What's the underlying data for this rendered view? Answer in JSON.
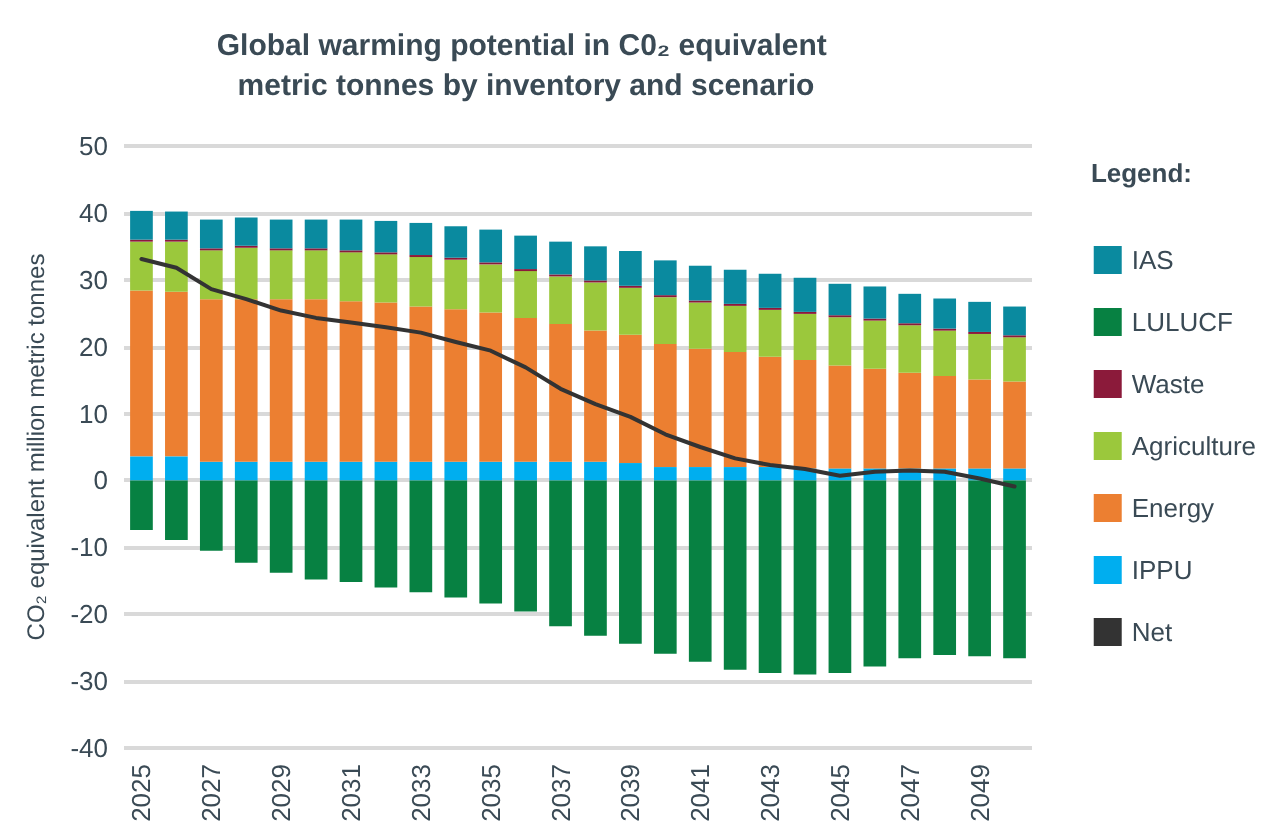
{
  "chart_data": {
    "type": "bar",
    "title": "Global warming potential in C0₂ equivalent metric tonnes by inventory and scenario",
    "ylabel": "CO₂ equivalent million metric tonnes",
    "legend_title": "Legend:",
    "categories": [
      "2025",
      null,
      "2027",
      null,
      "2029",
      null,
      "2031",
      null,
      "2033",
      null,
      "2035",
      null,
      "2037",
      null,
      "2039",
      null,
      "2041",
      null,
      "2043",
      null,
      "2045",
      null,
      "2047",
      null,
      "2049",
      null
    ],
    "stacked": true,
    "series": [
      {
        "name": "IPPU",
        "color": "#00aeef",
        "values": [
          3.6,
          3.6,
          2.8,
          2.8,
          2.8,
          2.8,
          2.8,
          2.8,
          2.8,
          2.8,
          2.8,
          2.8,
          2.8,
          2.8,
          2.6,
          2.0,
          2.0,
          2.0,
          2.0,
          1.8,
          1.8,
          1.8,
          1.8,
          1.8,
          1.8,
          1.8
        ]
      },
      {
        "name": "Energy",
        "color": "#ec7f31",
        "values": [
          24.8,
          24.6,
          24.3,
          24.3,
          24.3,
          24.3,
          24.0,
          23.8,
          23.2,
          22.8,
          22.3,
          21.5,
          20.6,
          19.6,
          19.2,
          18.4,
          17.7,
          17.2,
          16.5,
          16.2,
          15.4,
          14.9,
          14.3,
          13.8,
          13.3,
          13.0
        ]
      },
      {
        "name": "Agriculture",
        "color": "#9bc83c",
        "values": [
          7.3,
          7.5,
          7.3,
          7.7,
          7.3,
          7.3,
          7.3,
          7.2,
          7.4,
          7.4,
          7.2,
          7.0,
          7.1,
          7.2,
          7.0,
          7.0,
          6.9,
          6.9,
          7.0,
          6.9,
          7.2,
          7.2,
          7.1,
          6.8,
          6.8,
          6.6
        ]
      },
      {
        "name": "Waste",
        "color": "#8b1a3a",
        "values": [
          0.3,
          0.3,
          0.3,
          0.3,
          0.3,
          0.3,
          0.3,
          0.3,
          0.3,
          0.3,
          0.3,
          0.3,
          0.3,
          0.3,
          0.3,
          0.3,
          0.3,
          0.3,
          0.3,
          0.3,
          0.3,
          0.3,
          0.3,
          0.3,
          0.3,
          0.3
        ]
      },
      {
        "name": "LULUCF",
        "color": "#078142",
        "values": [
          -7.4,
          -8.9,
          -10.5,
          -12.3,
          -13.8,
          -14.8,
          -15.2,
          -16.0,
          -16.7,
          -17.5,
          -18.4,
          -19.6,
          -21.8,
          -23.2,
          -24.4,
          -25.9,
          -27.1,
          -28.3,
          -28.8,
          -29.0,
          -28.8,
          -27.8,
          -26.6,
          -26.1,
          -26.3,
          -26.6
        ]
      },
      {
        "name": "IAS",
        "color": "#0a8a9f",
        "values": [
          4.3,
          4.2,
          4.3,
          4.2,
          4.3,
          4.3,
          4.6,
          4.7,
          4.8,
          4.7,
          4.9,
          5.0,
          4.9,
          5.1,
          5.2,
          5.2,
          5.2,
          5.1,
          5.1,
          5.1,
          4.7,
          4.8,
          4.4,
          4.5,
          4.5,
          4.3
        ]
      },
      {
        "name": "Net",
        "type": "line",
        "color": "#333333",
        "values": [
          33.1,
          31.8,
          28.6,
          27.1,
          25.4,
          24.3,
          23.6,
          22.9,
          22.1,
          20.7,
          19.4,
          16.9,
          13.7,
          11.4,
          9.5,
          6.9,
          5.0,
          3.3,
          2.3,
          1.7,
          0.7,
          1.3,
          1.5,
          1.3,
          0.3,
          -0.9
        ]
      }
    ],
    "ylim": [
      -40,
      50
    ],
    "yticks": [
      -40,
      -30,
      -20,
      -10,
      0,
      10,
      20,
      30,
      40,
      50
    ],
    "grid": "y",
    "legend": "right",
    "marker": "none",
    "line_style": "solid"
  }
}
